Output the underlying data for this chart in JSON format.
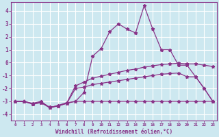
{
  "xlabel": "Windchill (Refroidissement éolien,°C)",
  "bg_color": "#cde8f0",
  "grid_color": "#ffffff",
  "line_color": "#883388",
  "spine_color": "#883388",
  "xlim": [
    -0.5,
    23.5
  ],
  "ylim": [
    -4.5,
    4.7
  ],
  "xtick_labels": [
    "0",
    "1",
    "2",
    "3",
    "4",
    "5",
    "6",
    "7",
    "8",
    "9",
    "10",
    "11",
    "12",
    "13",
    "14",
    "15",
    "16",
    "17",
    "18",
    "19",
    "20",
    "21",
    "22",
    "23"
  ],
  "ytick_values": [
    -4,
    -3,
    -2,
    -1,
    0,
    1,
    2,
    3,
    4
  ],
  "series": [
    [
      -3.0,
      -3.0,
      -3.15,
      -3.0,
      -3.5,
      -3.35,
      -3.15,
      -3.0,
      -3.0,
      -3.0,
      -3.0,
      -3.0,
      -3.0,
      -3.0,
      -3.0,
      -3.0,
      -3.0,
      -3.0,
      -3.0,
      -3.0,
      -3.0,
      -3.0,
      -3.0,
      -3.0
    ],
    [
      -3.0,
      -3.0,
      -3.2,
      -3.05,
      -3.45,
      -3.35,
      -3.15,
      -2.0,
      -1.9,
      -1.7,
      -1.6,
      -1.5,
      -1.4,
      -1.3,
      -1.2,
      -1.1,
      -1.0,
      -0.9,
      -0.85,
      -0.8,
      -1.1,
      -1.1,
      -2.0,
      -3.0
    ],
    [
      -3.0,
      -3.0,
      -3.2,
      -3.1,
      -3.45,
      -3.35,
      -3.1,
      -1.8,
      -1.5,
      -1.2,
      -1.05,
      -0.9,
      -0.75,
      -0.6,
      -0.5,
      -0.35,
      -0.25,
      -0.15,
      -0.1,
      -0.05,
      -0.1,
      -0.1,
      -0.2,
      -0.3
    ],
    [
      -3.0,
      -3.0,
      -3.2,
      -3.1,
      -3.5,
      -3.3,
      -3.1,
      -3.0,
      -2.3,
      0.5,
      1.1,
      2.4,
      3.0,
      2.6,
      2.3,
      4.4,
      2.6,
      1.0,
      1.0,
      -0.2,
      -0.2,
      -1.1,
      -2.0,
      -3.0
    ]
  ]
}
